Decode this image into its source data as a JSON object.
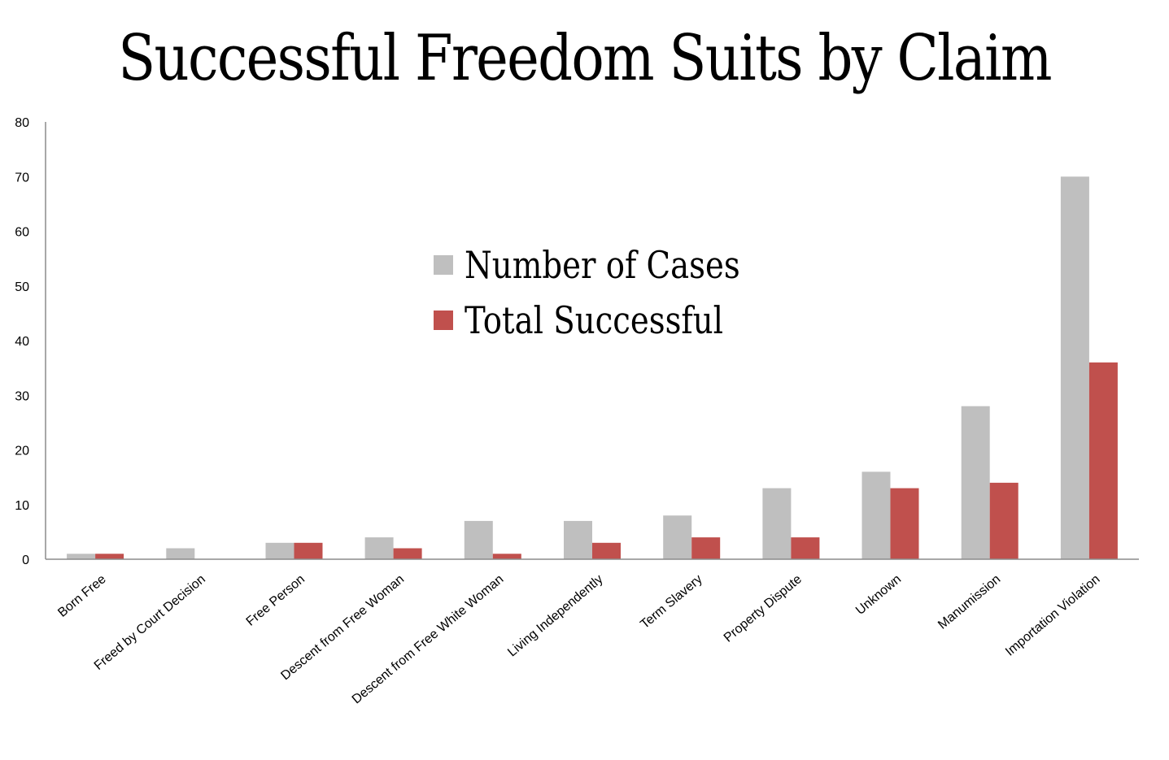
{
  "chart_data": {
    "type": "bar",
    "title": "Successful Freedom Suits by Claim",
    "categories": [
      "Born Free",
      "Freed by Court Decision",
      "Free Person",
      "Descent from Free Woman",
      "Descent from Free White Woman",
      "Living Independently",
      "Term Slavery",
      "Property Dispute",
      "Unknown",
      "Manumission",
      "Importation Violation"
    ],
    "series": [
      {
        "name": "Number of Cases",
        "color": "#bfbfbf",
        "values": [
          1,
          2,
          3,
          4,
          7,
          7,
          8,
          13,
          16,
          28,
          70
        ]
      },
      {
        "name": "Total Successful",
        "color": "#c0504d",
        "values": [
          1,
          0,
          3,
          2,
          1,
          3,
          4,
          4,
          13,
          14,
          36
        ]
      }
    ],
    "ylim": [
      0,
      80
    ],
    "yticks": [
      0,
      10,
      20,
      30,
      40,
      50,
      60,
      70,
      80
    ],
    "grid": false,
    "legend": "center"
  }
}
